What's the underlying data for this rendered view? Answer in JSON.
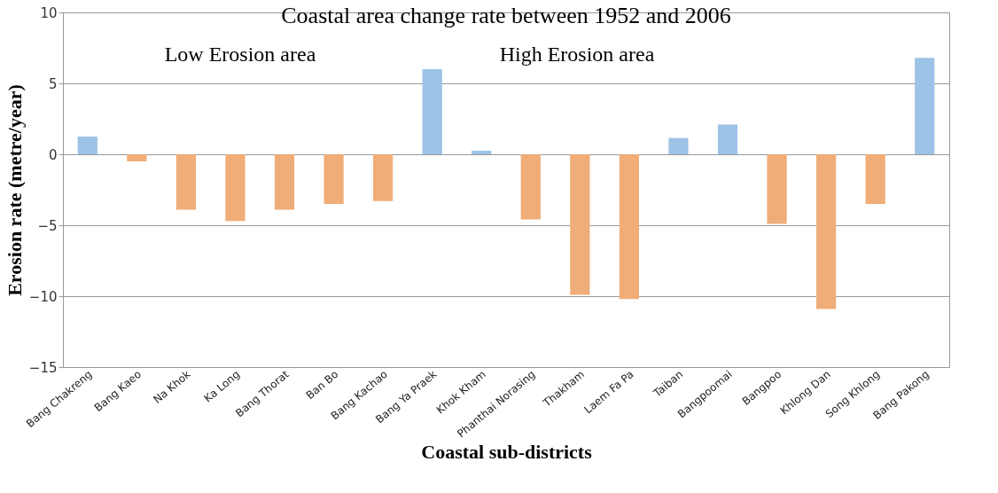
{
  "chart_data": {
    "type": "bar",
    "title": "Coastal area change rate between 1952 and 2006",
    "xlabel": "Coastal sub-districts",
    "ylabel": "Erosion rate (metre/year)",
    "categories": [
      "Bang Chakreng",
      "Bang Kaeo",
      "Na Khok",
      "Ka Long",
      "Bang Thorat",
      "Ban Bo",
      "Bang Kachao",
      "Bang Ya Praek",
      "Khok Kham",
      "Phanthai Norasing",
      "Thakham",
      "Laem Fa Pa",
      "Taiban",
      "Bangpoomai",
      "Bangpoo",
      "Khlong Dan",
      "Song Khlong",
      "Bang Pakong"
    ],
    "values": [
      1.25,
      -0.5,
      -3.9,
      -4.7,
      -3.9,
      -3.5,
      -3.3,
      6.0,
      0.25,
      -4.6,
      -9.9,
      -10.2,
      1.15,
      2.1,
      -4.9,
      -10.9,
      -3.5,
      6.8
    ],
    "colors": [
      "#9dc3e6",
      "#f0ad78",
      "#f0ad78",
      "#f0ad78",
      "#f0ad78",
      "#f0ad78",
      "#f0ad78",
      "#9dc3e6",
      "#9dc3e6",
      "#f0ad78",
      "#f0ad78",
      "#f0ad78",
      "#9dc3e6",
      "#9dc3e6",
      "#f0ad78",
      "#f0ad78",
      "#f0ad78",
      "#9dc3e6"
    ],
    "ylim": [
      -15,
      10
    ],
    "yticks": [
      -15,
      -10,
      -5,
      0,
      5,
      10
    ],
    "grid": "y",
    "annotations": [
      "Low Erosion area",
      "High Erosion area"
    ]
  }
}
